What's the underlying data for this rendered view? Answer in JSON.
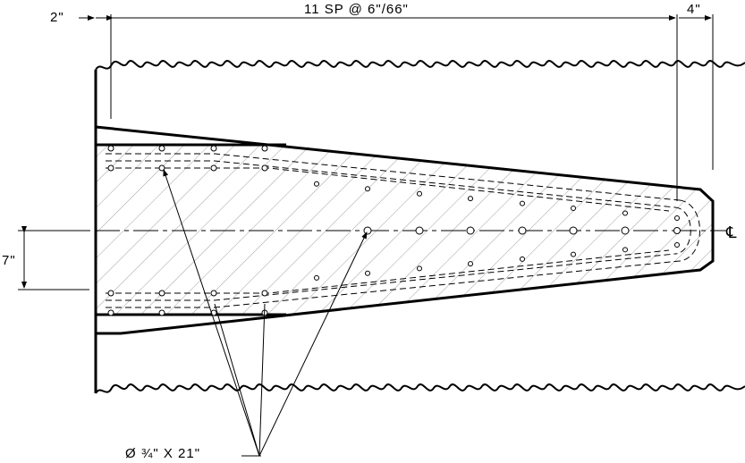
{
  "dimensions": {
    "left_offset": "2\"",
    "spacing": "11 SP @ 6\"/66\"",
    "right_offset": "4\"",
    "vertical_offset": "7\""
  },
  "symbols": {
    "centerline": "℄"
  },
  "callouts": {
    "bar": "Ø ¾\" X 21\""
  },
  "colors": {
    "line": "#000000",
    "background": "#ffffff"
  }
}
